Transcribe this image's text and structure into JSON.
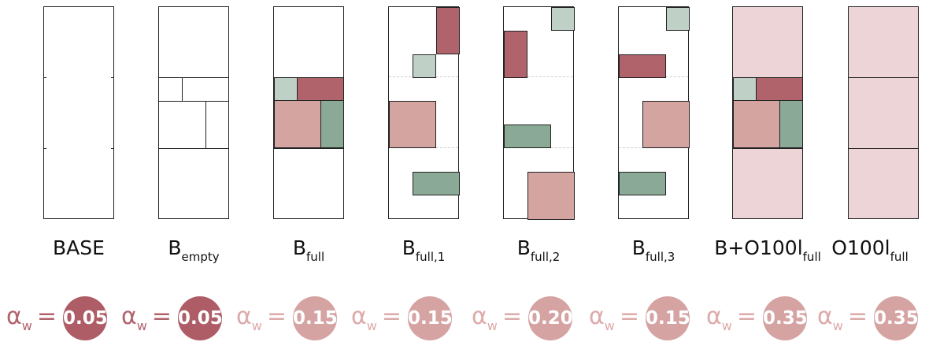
{
  "panels": [
    {
      "label_main": "BASE",
      "label_sub": "",
      "alpha_symbol": "α",
      "alpha_sub": "w",
      "alpha_eq": "=",
      "alpha_value": "0.05",
      "symbol_color": "#b0636b",
      "circle_color": "#ae5d66"
    },
    {
      "label_main": "B",
      "label_sub": "empty",
      "alpha_symbol": "α",
      "alpha_sub": "w",
      "alpha_eq": "=",
      "alpha_value": "0.05",
      "symbol_color": "#b0636b",
      "circle_color": "#ae5d66"
    },
    {
      "label_main": "B",
      "label_sub": "full",
      "alpha_symbol": "α",
      "alpha_sub": "w",
      "alpha_eq": "=",
      "alpha_value": "0.15",
      "symbol_color": "#dcaaa9",
      "circle_color": "#d6a3a3"
    },
    {
      "label_main": "B",
      "label_sub": "full,1",
      "alpha_symbol": "α",
      "alpha_sub": "w",
      "alpha_eq": "=",
      "alpha_value": "0.15",
      "symbol_color": "#dcaaa9",
      "circle_color": "#d6a3a3"
    },
    {
      "label_main": "B",
      "label_sub": "full,2",
      "alpha_symbol": "α",
      "alpha_sub": "w",
      "alpha_eq": "=",
      "alpha_value": "0.20",
      "symbol_color": "#dcaaa9",
      "circle_color": "#d6a3a3"
    },
    {
      "label_main": "B",
      "label_sub": "full,3",
      "alpha_symbol": "α",
      "alpha_sub": "w",
      "alpha_eq": "=",
      "alpha_value": "0.15",
      "symbol_color": "#dcaaa9",
      "circle_color": "#d6a3a3"
    },
    {
      "label_main": "B+O100l",
      "label_sub": "full",
      "alpha_symbol": "α",
      "alpha_sub": "w",
      "alpha_eq": "=",
      "alpha_value": "0.35",
      "symbol_color": "#dcaaa9",
      "circle_color": "#d6a3a3"
    },
    {
      "label_main": "O100l",
      "label_sub": "full",
      "alpha_symbol": "α",
      "alpha_sub": "w",
      "alpha_eq": "=",
      "alpha_value": "0.35",
      "symbol_color": "#dcaaa9",
      "circle_color": "#d6a3a3"
    }
  ],
  "colors": {
    "light_green": "#bfd1c6",
    "dark_red": "#b0636b",
    "dark_green": "#8aa996",
    "light_red": "#d4a4a0",
    "tint": "#ecd4d7"
  }
}
